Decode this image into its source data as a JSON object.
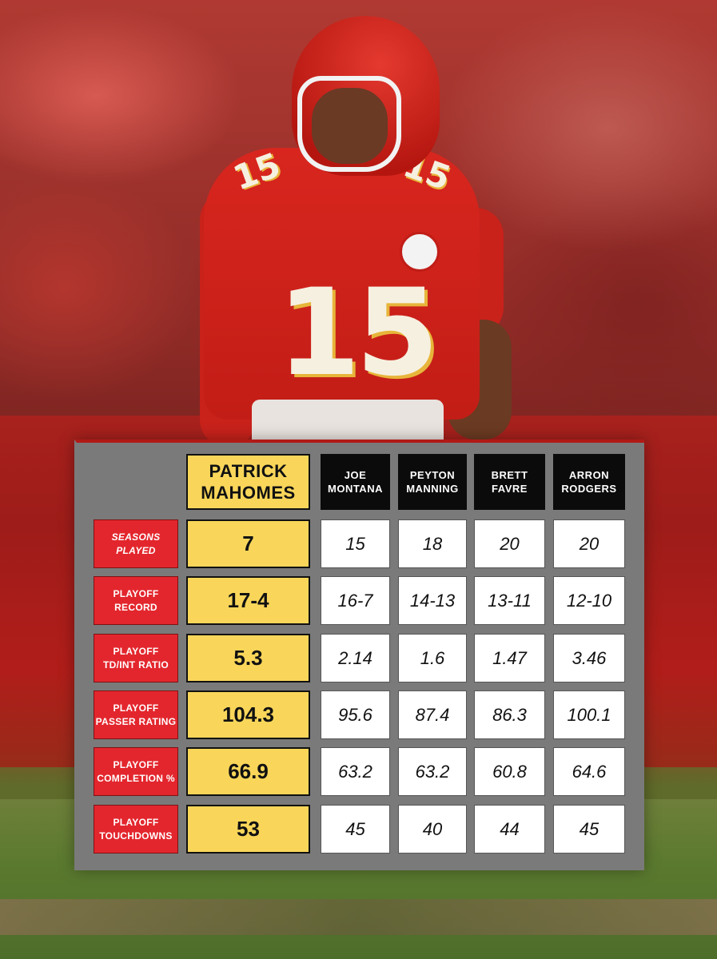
{
  "table": {
    "players": [
      {
        "name": "PATRICK\nMAHOMES",
        "highlight": true
      },
      {
        "name": "JOE\nMONTANA"
      },
      {
        "name": "PEYTON\nMANNING"
      },
      {
        "name": "BRETT\nFAVRE"
      },
      {
        "name": "ARRON\nRODGERS"
      }
    ],
    "rows": [
      {
        "label": "SEASONS\nPLAYED",
        "values": [
          "7",
          "15",
          "18",
          "20",
          "20"
        ]
      },
      {
        "label": "PLAYOFF\nRECORD",
        "values": [
          "17-4",
          "16-7",
          "14-13",
          "13-11",
          "12-10"
        ]
      },
      {
        "label": "PLAYOFF\nTD/INT RATIO",
        "values": [
          "5.3",
          "2.14",
          "1.6",
          "1.47",
          "3.46"
        ]
      },
      {
        "label": "PLAYOFF\nPASSER RATING",
        "values": [
          "104.3",
          "95.6",
          "87.4",
          "86.3",
          "100.1"
        ]
      },
      {
        "label": "PLAYOFF\nCOMPLETION %",
        "values": [
          "66.9",
          "63.2",
          "63.2",
          "60.8",
          "64.6"
        ]
      },
      {
        "label": "PLAYOFF\nTOUCHDOWNS",
        "values": [
          "53",
          "45",
          "40",
          "44",
          "45"
        ]
      }
    ]
  },
  "photo": {
    "jersey_number": "15",
    "colors": {
      "jersey_red": "#c8221b",
      "gold": "#e7b53a",
      "highlight_yellow": "#f9d65a",
      "label_red": "#e3262d"
    }
  }
}
